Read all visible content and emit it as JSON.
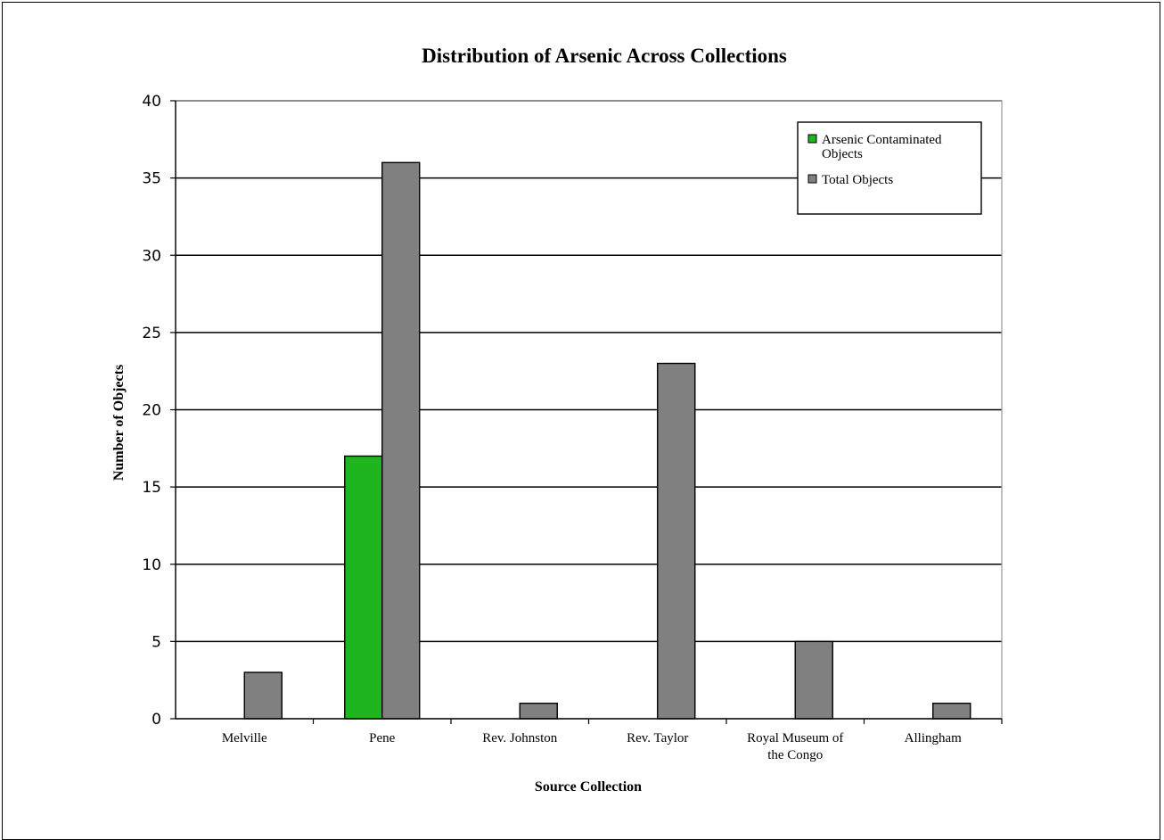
{
  "chart_data": {
    "type": "bar",
    "title": "Distribution of Arsenic Across Collections",
    "xlabel": "Source Collection",
    "ylabel": "Number of Objects",
    "categories": [
      [
        "Melville"
      ],
      [
        "Pene"
      ],
      [
        "Rev. Johnston"
      ],
      [
        "Rev. Taylor"
      ],
      [
        "Royal Museum of",
        "the Congo"
      ],
      [
        "Allingham"
      ]
    ],
    "series": [
      {
        "name": "Arsenic Contaminated Objects",
        "legend_lines": [
          "Arsenic Contaminated",
          "Objects"
        ],
        "color": "#1fb51f",
        "values": [
          0,
          17,
          0,
          0,
          0,
          0
        ]
      },
      {
        "name": "Total Objects",
        "legend_lines": [
          "Total Objects"
        ],
        "color": "#808080",
        "values": [
          3,
          36,
          1,
          23,
          5,
          1
        ]
      }
    ],
    "ylim": [
      0,
      40
    ],
    "yticks": [
      0,
      5,
      10,
      15,
      20,
      25,
      30,
      35,
      40
    ],
    "grid": true,
    "legend_position": "top-right"
  }
}
